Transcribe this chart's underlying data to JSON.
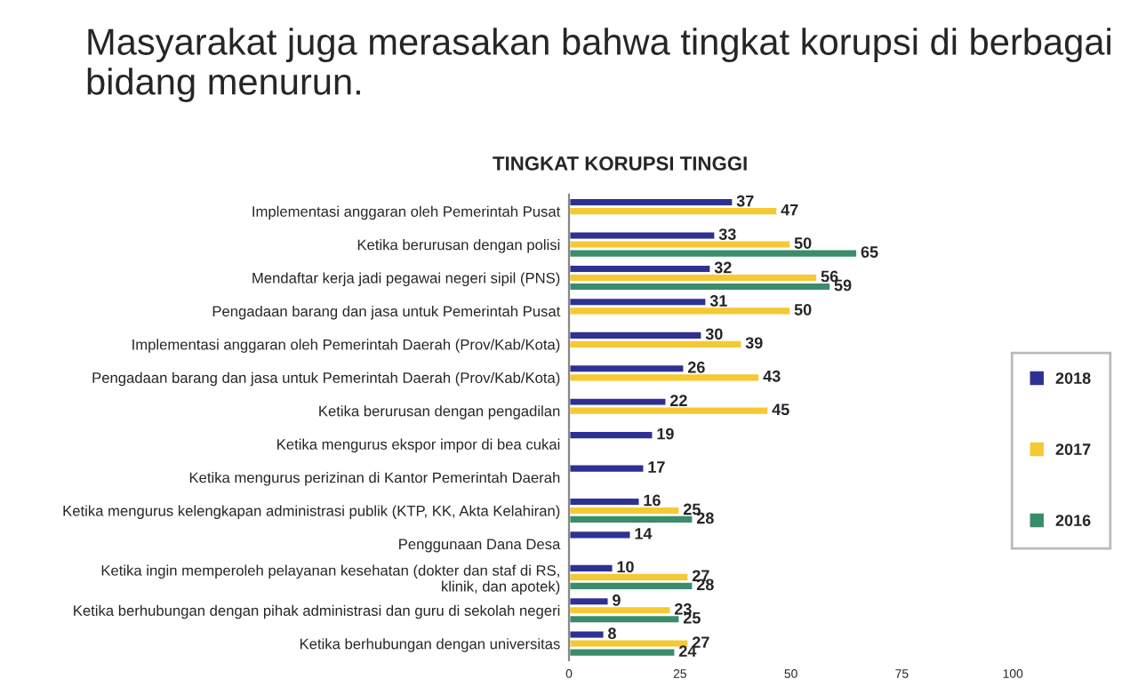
{
  "chart_data": {
    "type": "bar",
    "orientation": "horizontal",
    "title": "Masyarakat juga merasakan bahwa tingkat korupsi di berbagai bidang menurun.",
    "subtitle": "TINGKAT KORUPSI TINGGI",
    "categories": [
      "Implementasi anggaran oleh Pemerintah Pusat",
      "Ketika berurusan dengan polisi",
      "Mendaftar kerja jadi pegawai negeri sipil (PNS)",
      "Pengadaan barang dan jasa untuk Pemerintah Pusat",
      "Implementasi anggaran oleh Pemerintah Daerah (Prov/Kab/Kota)",
      "Pengadaan barang dan jasa untuk Pemerintah Daerah (Prov/Kab/Kota)",
      "Ketika berurusan dengan pengadilan",
      "Ketika mengurus ekspor impor di bea cukai",
      "Ketika mengurus perizinan di Kantor Pemerintah Daerah",
      "Ketika mengurus kelengkapan administrasi publik (KTP, KK, Akta Kelahiran)",
      "Penggunaan Dana Desa",
      "Ketika ingin memperoleh pelayanan kesehatan (dokter dan staf di RS,\nklinik, dan apotek)",
      "Ketika berhubungan dengan pihak administrasi dan guru di sekolah negeri",
      "Ketika berhubungan dengan universitas"
    ],
    "series": [
      {
        "name": "2018",
        "color": "#2e3192",
        "values": [
          37,
          33,
          32,
          31,
          30,
          26,
          22,
          19,
          17,
          16,
          14,
          10,
          9,
          8
        ]
      },
      {
        "name": "2017",
        "color": "#f5c932",
        "values": [
          47,
          50,
          56,
          50,
          39,
          43,
          45,
          null,
          null,
          25,
          null,
          27,
          23,
          27
        ]
      },
      {
        "name": "2016",
        "color": "#3a8c6a",
        "values": [
          null,
          65,
          59,
          null,
          null,
          null,
          null,
          null,
          null,
          28,
          null,
          28,
          25,
          24
        ]
      }
    ],
    "xlim": [
      0,
      100
    ],
    "xticks": [
      0,
      25,
      50,
      75,
      100
    ],
    "data_labels": true,
    "grid": false,
    "legend": "right"
  }
}
